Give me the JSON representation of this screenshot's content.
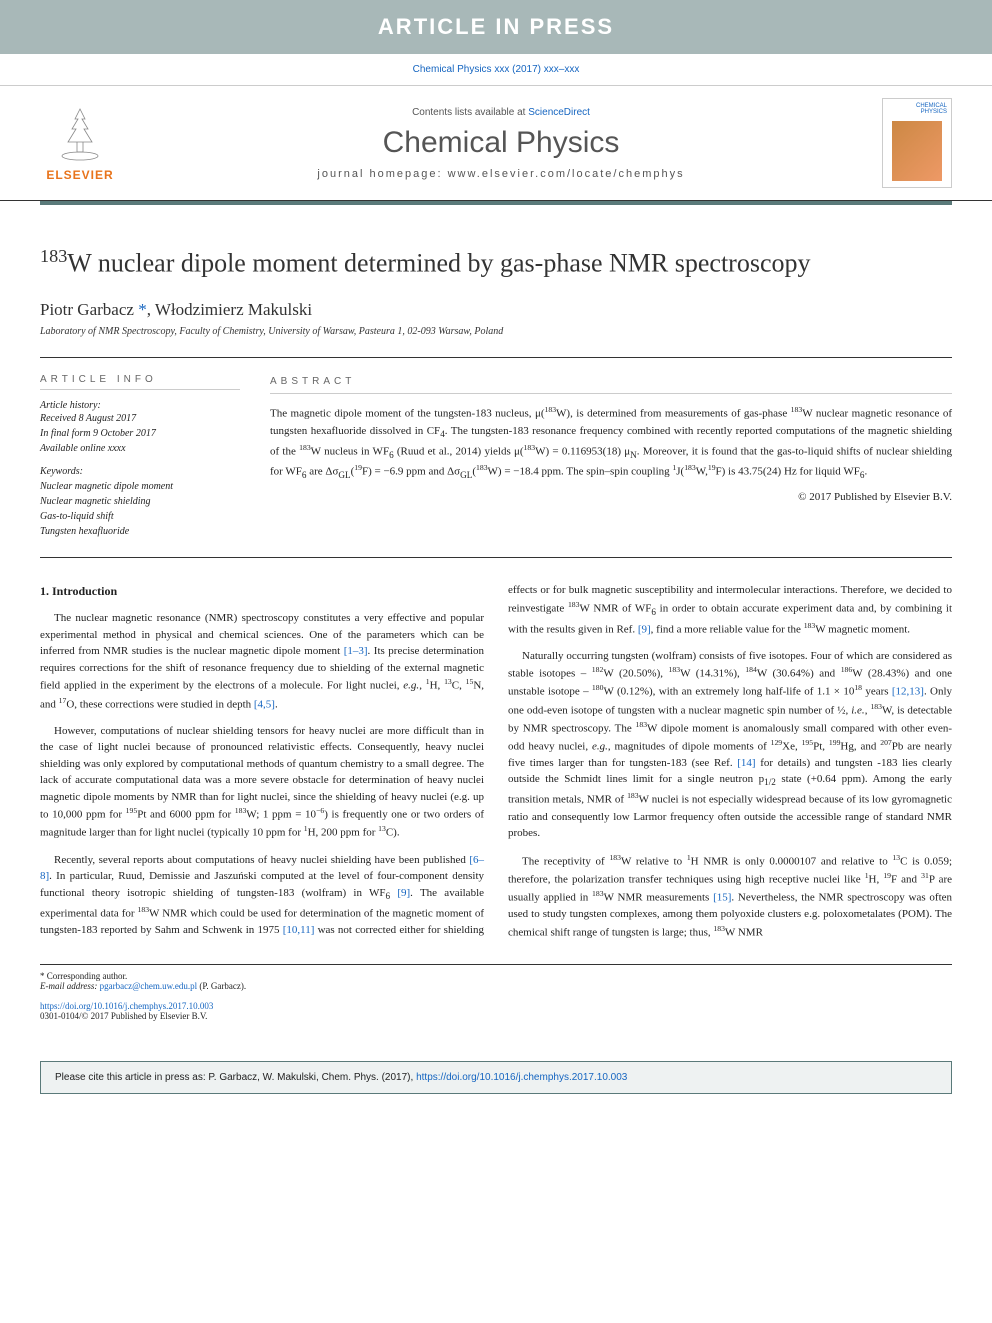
{
  "banner": "ARTICLE IN PRESS",
  "doi_top": "Chemical Physics xxx (2017) xxx–xxx",
  "header": {
    "contents_prefix": "Contents lists available at ",
    "contents_link": "ScienceDirect",
    "journal_name": "Chemical Physics",
    "homepage_prefix": "journal homepage: ",
    "homepage": "www.elsevier.com/locate/chemphys",
    "elsevier_label": "ELSEVIER",
    "cover_label1": "CHEMICAL",
    "cover_label2": "PHYSICS"
  },
  "title_html": "<sup>183</sup>W nuclear dipole moment determined by gas-phase NMR spectroscopy",
  "authors_html": "Piotr Garbacz <a href=\"#\">*</a>, Włodzimierz Makulski",
  "affiliation": "Laboratory of NMR Spectroscopy, Faculty of Chemistry, University of Warsaw, Pasteura 1, 02-093 Warsaw, Poland",
  "info": {
    "label": "ARTICLE INFO",
    "history_head": "Article history:",
    "history": [
      "Received 8 August 2017",
      "In final form 9 October 2017",
      "Available online xxxx"
    ],
    "keywords_head": "Keywords:",
    "keywords": [
      "Nuclear magnetic dipole moment",
      "Nuclear magnetic shielding",
      "Gas-to-liquid shift",
      "Tungsten hexafluoride"
    ]
  },
  "abstract": {
    "label": "ABSTRACT",
    "text_html": "The magnetic dipole moment of the tungsten-183 nucleus, μ(<sup>183</sup>W), is determined from measurements of gas-phase <sup>183</sup>W nuclear magnetic resonance of tungsten hexafluoride dissolved in CF<sub>4</sub>. The tungsten-183 resonance frequency combined with recently reported computations of the magnetic shielding of the <sup>183</sup>W nucleus in WF<sub>6</sub> (Ruud et al., 2014) yields μ(<sup>183</sup>W) = 0.116953(18) μ<sub>N</sub>. Moreover, it is found that the gas-to-liquid shifts of nuclear shielding for WF<sub>6</sub> are Δσ<sub>GL</sub>(<sup>19</sup>F) = −6.9 ppm and Δσ<sub>GL</sub>(<sup>183</sup>W) = −18.4 ppm. The spin–spin coupling <sup>1</sup>J(<sup>183</sup>W,<sup>19</sup>F) is 43.75(24) Hz for liquid WF<sub>6</sub>.",
    "copyright": "© 2017 Published by Elsevier B.V."
  },
  "body": {
    "heading": "1. Introduction",
    "p1_html": "The nuclear magnetic resonance (NMR) spectroscopy constitutes a very effective and popular experimental method in physical and chemical sciences. One of the parameters which can be inferred from NMR studies is the nuclear magnetic dipole moment <a href=\"#\">[1–3]</a>. Its precise determination requires corrections for the shift of resonance frequency due to shielding of the external magnetic field applied in the experiment by the electrons of a molecule. For light nuclei, <i>e.g.</i>, <sup>1</sup>H, <sup>13</sup>C, <sup>15</sup>N, and <sup>17</sup>O, these corrections were studied in depth <a href=\"#\">[4,5]</a>.",
    "p2_html": "However, computations of nuclear shielding tensors for heavy nuclei are more difficult than in the case of light nuclei because of pronounced relativistic effects. Consequently, heavy nuclei shielding was only explored by computational methods of quantum chemistry to a small degree. The lack of accurate computational data was a more severe obstacle for determination of heavy nuclei magnetic dipole moments by NMR than for light nuclei, since the shielding of heavy nuclei (e.g. up to 10,000 ppm for <sup>195</sup>Pt and 6000 ppm for <sup>183</sup>W; 1 ppm = 10<sup>−6</sup>) is frequently one or two orders of magnitude larger than for light nuclei (typically 10 ppm for <sup>1</sup>H, 200 ppm for <sup>13</sup>C).",
    "p3_html": "Recently, several reports about computations of heavy nuclei shielding have been published <a href=\"#\">[6–8]</a>. In particular, Ruud, Demissie and Jaszuński computed at the level of four-component density functional theory isotropic shielding of tungsten-183 (wolfram) in WF<sub>6</sub> <a href=\"#\">[9]</a>. The available experimental data for <sup>183</sup>W NMR which could be used for determination of the magnetic moment of tungsten-183 reported by Sahm and Schwenk in 1975 <a href=\"#\">[10,11]</a> was not corrected either for shielding effects or for bulk magnetic susceptibility and intermolecular interactions. Therefore, we decided to reinvestigate <sup>183</sup>W NMR of WF<sub>6</sub> in order to obtain accurate experiment data and, by combining it with the results given in Ref. <a href=\"#\">[9]</a>, find a more reliable value for the <sup>183</sup>W magnetic moment.",
    "p4_html": "Naturally occurring tungsten (wolfram) consists of five isotopes. Four of which are considered as stable isotopes – <sup>182</sup>W (20.50%), <sup>183</sup>W (14.31%), <sup>184</sup>W (30.64%) and <sup>186</sup>W (28.43%) and one unstable isotope – <sup>180</sup>W (0.12%), with an extremely long half-life of 1.1 × 10<sup>18</sup> years <a href=\"#\">[12,13]</a>. Only one odd-even isotope of tungsten with a nuclear magnetic spin number of ½, <i>i.e.</i>, <sup>183</sup>W, is detectable by NMR spectroscopy. The <sup>183</sup>W dipole moment is anomalously small compared with other even-odd heavy nuclei, <i>e.g.</i>, magnitudes of dipole moments of <sup>129</sup>Xe, <sup>195</sup>Pt, <sup>199</sup>Hg, and <sup>207</sup>Pb are nearly five times larger than for tungsten-183 (see Ref. <a href=\"#\">[14]</a> for details) and tungsten -183 lies clearly outside the Schmidt lines limit for a single neutron p<sub>1/2</sub> state (+0.64 ppm). Among the early transition metals, NMR of <sup>183</sup>W nuclei is not especially widespread because of its low gyromagnetic ratio and consequently low Larmor frequency often outside the accessible range of standard NMR probes.",
    "p5_html": "The receptivity of <sup>183</sup>W relative to <sup>1</sup>H NMR is only 0.0000107 and relative to <sup>13</sup>C is 0.059; therefore, the polarization transfer techniques using high receptive nuclei like <sup>1</sup>H, <sup>19</sup>F and <sup>31</sup>P are usually applied in <sup>183</sup>W NMR measurements <a href=\"#\">[15]</a>. Nevertheless, the NMR spectroscopy was often used to study tungsten complexes, among them polyoxide clusters e.g. poloxometalates (POM). The chemical shift range of tungsten is large; thus, <sup>183</sup>W NMR"
  },
  "footnotes": {
    "corresponding": "* Corresponding author.",
    "email_label": "E-mail address: ",
    "email": "pgarbacz@chem.uw.edu.pl",
    "email_name": " (P. Garbacz).",
    "doi": "https://doi.org/10.1016/j.chemphys.2017.10.003",
    "issn_line": "0301-0104/© 2017 Published by Elsevier B.V."
  },
  "cite_box_html": "Please cite this article in press as: P. Garbacz, W. Makulski, Chem. Phys. (2017), <a href=\"#\">https://doi.org/10.1016/j.chemphys.2017.10.003</a>",
  "colors": {
    "banner_bg": "#a8b8b8",
    "accent": "#5a7a7a",
    "link": "#1565c0",
    "elsevier": "#e8741c"
  }
}
